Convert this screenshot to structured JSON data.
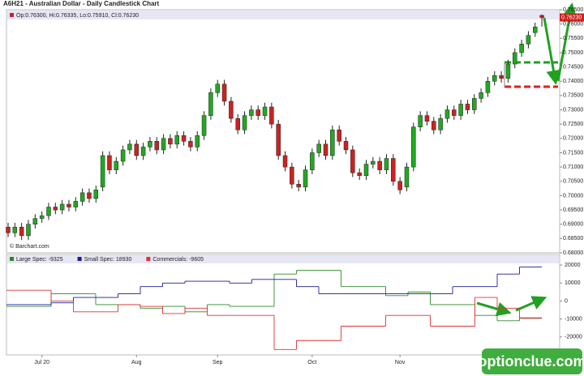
{
  "chart_data": [
    {
      "type": "candlestick",
      "title": "A6H21 - Australian Dollar - Daily Candlestick Chart",
      "info": "Op:0.76300, Hi:0.76335, Lo:0.75910, Cl:0.76230",
      "credit": "© Barchart.com",
      "last_label": "0.76230",
      "up_color": "#22a822",
      "down_color": "#cc2222",
      "categories": [
        null,
        null,
        null,
        null,
        null,
        "Jul 20",
        null,
        null,
        null,
        null,
        null,
        null,
        null,
        null,
        null,
        null,
        null,
        null,
        null,
        "Aug",
        null,
        null,
        null,
        null,
        null,
        null,
        null,
        null,
        null,
        null,
        null,
        "Sep",
        null,
        null,
        null,
        null,
        null,
        null,
        null,
        null,
        null,
        null,
        null,
        null,
        null,
        "Oct",
        null,
        null,
        null,
        null,
        null,
        null,
        null,
        null,
        null,
        null,
        null,
        null,
        "Nov",
        null,
        null,
        null,
        null,
        null,
        null,
        null,
        null,
        null,
        null,
        null,
        null,
        null,
        null,
        null,
        null,
        null,
        null,
        null,
        null,
        null
      ],
      "open": [
        0.689,
        0.687,
        0.689,
        0.686,
        0.69,
        0.692,
        0.693,
        0.696,
        0.695,
        0.697,
        0.696,
        0.698,
        0.701,
        0.699,
        0.703,
        0.714,
        0.709,
        0.712,
        0.716,
        0.718,
        0.714,
        0.717,
        0.719,
        0.716,
        0.72,
        0.718,
        0.721,
        0.719,
        0.717,
        0.721,
        0.728,
        0.736,
        0.739,
        0.733,
        0.727,
        0.723,
        0.728,
        0.73,
        0.728,
        0.731,
        0.725,
        0.714,
        0.71,
        0.704,
        0.703,
        0.709,
        0.715,
        0.718,
        0.714,
        0.723,
        0.719,
        0.716,
        0.708,
        0.707,
        0.711,
        0.712,
        0.709,
        0.713,
        0.705,
        0.703,
        0.71,
        0.724,
        0.728,
        0.726,
        0.723,
        0.727,
        0.73,
        0.728,
        0.732,
        0.73,
        0.734,
        0.736,
        0.74,
        0.742,
        0.741,
        0.746,
        0.75,
        0.753,
        0.757,
        0.763
      ],
      "high": [
        0.6905,
        0.6905,
        0.6905,
        0.6915,
        0.6935,
        0.6945,
        0.6975,
        0.6975,
        0.6985,
        0.6985,
        0.6995,
        0.7025,
        0.7025,
        0.7035,
        0.7155,
        0.7155,
        0.7135,
        0.7175,
        0.7195,
        0.7195,
        0.7185,
        0.7205,
        0.7205,
        0.7215,
        0.7215,
        0.7225,
        0.7225,
        0.7205,
        0.7225,
        0.7295,
        0.7375,
        0.7405,
        0.7405,
        0.7345,
        0.7285,
        0.7295,
        0.7315,
        0.7315,
        0.7325,
        0.7325,
        0.7265,
        0.7155,
        0.7115,
        0.7055,
        0.7105,
        0.7165,
        0.7195,
        0.7195,
        0.7245,
        0.7245,
        0.7205,
        0.7175,
        0.7095,
        0.7125,
        0.7135,
        0.7135,
        0.7145,
        0.7145,
        0.7065,
        0.7115,
        0.7255,
        0.7295,
        0.7295,
        0.7275,
        0.7285,
        0.7315,
        0.7315,
        0.7335,
        0.7335,
        0.7355,
        0.7375,
        0.7415,
        0.7435,
        0.7435,
        0.7475,
        0.7515,
        0.7545,
        0.7575,
        0.7605,
        0.76335
      ],
      "low": [
        0.6855,
        0.6855,
        0.6845,
        0.6845,
        0.6885,
        0.6905,
        0.6915,
        0.6935,
        0.6935,
        0.6945,
        0.6945,
        0.6965,
        0.6975,
        0.6975,
        0.7015,
        0.7075,
        0.7075,
        0.7105,
        0.7145,
        0.7125,
        0.7125,
        0.7155,
        0.7145,
        0.7145,
        0.7165,
        0.7165,
        0.7175,
        0.7155,
        0.7155,
        0.7195,
        0.7265,
        0.7345,
        0.7315,
        0.7255,
        0.7215,
        0.7215,
        0.7265,
        0.7265,
        0.7265,
        0.7235,
        0.7125,
        0.7085,
        0.7025,
        0.7015,
        0.7015,
        0.7075,
        0.7135,
        0.7125,
        0.7125,
        0.7175,
        0.7145,
        0.7065,
        0.7055,
        0.7055,
        0.7095,
        0.7075,
        0.7075,
        0.7035,
        0.7005,
        0.7015,
        0.7085,
        0.7225,
        0.7245,
        0.7215,
        0.7215,
        0.7255,
        0.7265,
        0.7265,
        0.7285,
        0.7285,
        0.7325,
        0.7345,
        0.7385,
        0.7395,
        0.7395,
        0.7445,
        0.7485,
        0.7515,
        0.7555,
        0.7591
      ],
      "close": [
        0.687,
        0.689,
        0.686,
        0.69,
        0.692,
        0.693,
        0.696,
        0.695,
        0.697,
        0.696,
        0.698,
        0.701,
        0.699,
        0.702,
        0.714,
        0.709,
        0.712,
        0.716,
        0.718,
        0.714,
        0.717,
        0.719,
        0.716,
        0.72,
        0.718,
        0.721,
        0.719,
        0.717,
        0.721,
        0.728,
        0.736,
        0.739,
        0.733,
        0.727,
        0.723,
        0.728,
        0.73,
        0.728,
        0.731,
        0.725,
        0.714,
        0.71,
        0.704,
        0.703,
        0.709,
        0.715,
        0.718,
        0.714,
        0.723,
        0.719,
        0.716,
        0.708,
        0.707,
        0.711,
        0.712,
        0.709,
        0.713,
        0.705,
        0.702,
        0.71,
        0.724,
        0.728,
        0.726,
        0.723,
        0.727,
        0.73,
        0.728,
        0.732,
        0.73,
        0.734,
        0.736,
        0.74,
        0.742,
        0.741,
        0.746,
        0.75,
        0.753,
        0.756,
        0.759,
        0.7623
      ],
      "ylim": [
        0.68,
        0.765
      ],
      "yticks": [
        {
          "value": 0.68,
          "label": "0.68000"
        },
        {
          "value": 0.685,
          "label": "0.68500"
        },
        {
          "value": 0.69,
          "label": "0.69000"
        },
        {
          "value": 0.695,
          "label": "0.69500"
        },
        {
          "value": 0.7,
          "label": "0.70000"
        },
        {
          "value": 0.705,
          "label": "0.70500"
        },
        {
          "value": 0.71,
          "label": "0.71000"
        },
        {
          "value": 0.715,
          "label": "0.71500"
        },
        {
          "value": 0.72,
          "label": "0.72000"
        },
        {
          "value": 0.725,
          "label": "0.72500"
        },
        {
          "value": 0.73,
          "label": "0.73000"
        },
        {
          "value": 0.735,
          "label": "0.73500"
        },
        {
          "value": 0.74,
          "label": "0.74000"
        },
        {
          "value": 0.745,
          "label": "0.74500"
        },
        {
          "value": 0.75,
          "label": "0.75000"
        },
        {
          "value": 0.755,
          "label": "0.75500"
        },
        {
          "value": 0.76,
          "label": "0.76000"
        },
        {
          "value": 0.765,
          "label": "0.76500"
        }
      ]
    },
    {
      "type": "step",
      "series": [
        {
          "name": "Large Spec: -9325",
          "color": "#2a8a2a",
          "values": [
            -3000,
            -3000,
            4000,
            4000,
            -2000,
            -2000,
            -4000,
            -3000,
            -6000,
            -2000,
            -3000,
            -3000,
            15000,
            17000,
            17000,
            8000,
            8000,
            3000,
            5000,
            -2000,
            -2000,
            -8000,
            -11000,
            -9325
          ]
        },
        {
          "name": "Small Spec: 18930",
          "color": "#1a1a9a",
          "values": [
            -2000,
            -2000,
            -1000,
            2000,
            2000,
            4000,
            8000,
            10000,
            11000,
            11000,
            10000,
            12000,
            12000,
            8000,
            4000,
            4000,
            4000,
            4000,
            4000,
            4000,
            8000,
            8000,
            15000,
            18930
          ]
        },
        {
          "name": "Commercials: -9605",
          "color": "#e03030",
          "values": [
            6000,
            6000,
            0,
            -6000,
            -6000,
            -2000,
            -3000,
            -7000,
            -4000,
            -8000,
            -8000,
            -8000,
            -27000,
            -22000,
            -22000,
            -14000,
            -14000,
            -8000,
            -8000,
            -14000,
            -14000,
            2000,
            -4000,
            -9605
          ]
        }
      ],
      "ylim": [
        -30000,
        25000
      ],
      "yticks": [
        -20000,
        -10000,
        0,
        10000,
        20000
      ]
    }
  ],
  "watermark": "optionclue.com"
}
